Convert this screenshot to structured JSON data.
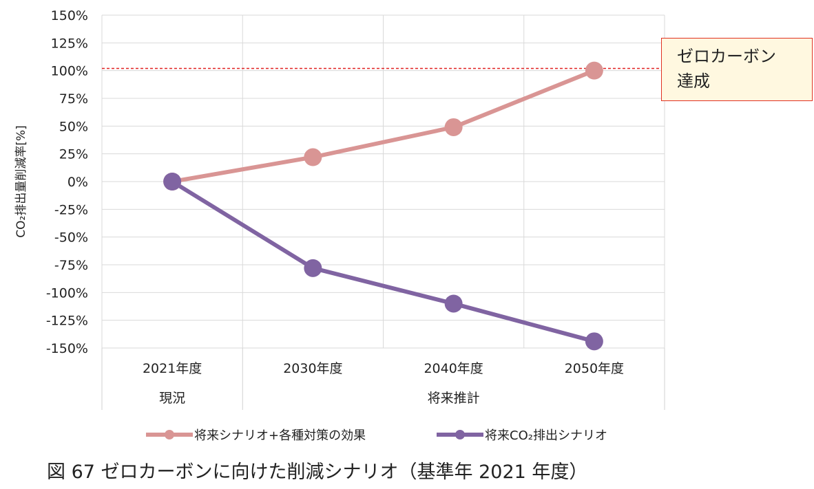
{
  "chart_data": {
    "type": "line",
    "categories": [
      "2021年度",
      "2030年度",
      "2040年度",
      "2050年度"
    ],
    "category_groups": [
      {
        "label": "現況",
        "span": 1
      },
      {
        "label": "将来推計",
        "span": 3
      }
    ],
    "ylabel": "CO₂排出量削減率[%]",
    "ylim": [
      -150,
      150
    ],
    "ytick_step": 25,
    "ytick_labels": [
      "150%",
      "125%",
      "100%",
      "75%",
      "50%",
      "25%",
      "0%",
      "-25%",
      "-50%",
      "-75%",
      "-100%",
      "-125%",
      "-150%"
    ],
    "series": [
      {
        "name": "将来シナリオ+各種対策の効果",
        "values": [
          0,
          22,
          49,
          100
        ],
        "color": "#d99594"
      },
      {
        "name": "将来CO₂排出シナリオ",
        "values": [
          0,
          -78,
          -110,
          -144
        ],
        "color": "#8064a2"
      }
    ],
    "reference_line": {
      "value": 102,
      "color": "#e02020"
    },
    "annotation": {
      "lines": [
        "ゼロカーボン",
        "達成"
      ]
    },
    "grid": true,
    "legend_position": "bottom"
  },
  "caption": "図  67 ゼロカーボンに向けた削減シナリオ（基準年 2021 年度）"
}
